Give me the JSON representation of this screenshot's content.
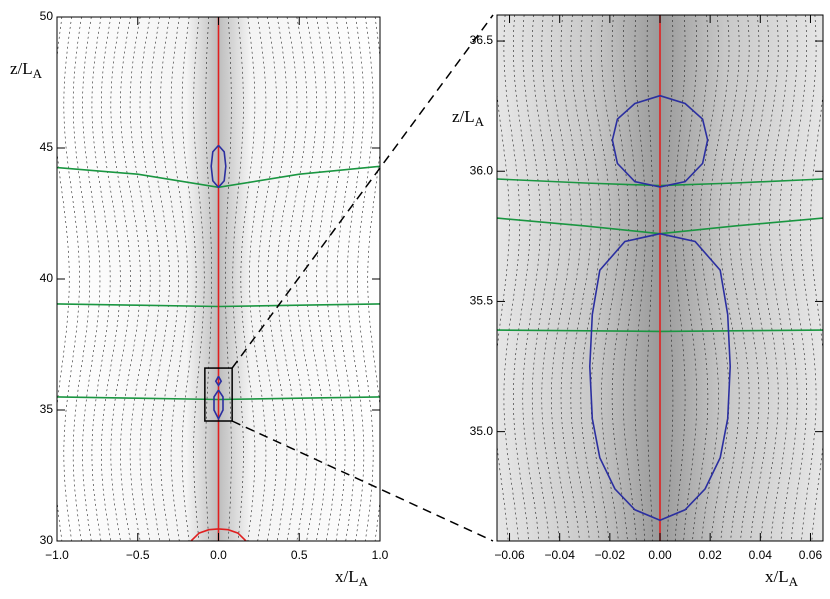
{
  "chart_data": [
    {
      "type": "line",
      "xlabel": {
        "main": "x/L",
        "sub": "A"
      },
      "ylabel": {
        "main": "z/L",
        "sub": "A"
      },
      "xlim": [
        -1,
        1
      ],
      "ylim": [
        30,
        50
      ],
      "xticks": [
        {
          "value": -1,
          "label": "−1.0"
        },
        {
          "value": -0.5,
          "label": "−0.5"
        },
        {
          "value": 0,
          "label": "0.0"
        },
        {
          "value": 0.5,
          "label": "0.5"
        },
        {
          "value": 1,
          "label": "1.0"
        }
      ],
      "yticks": [
        30,
        35,
        40,
        45,
        50
      ],
      "series": [
        {
          "color": "#1a9641",
          "x": [
            -1,
            -0.5,
            0,
            0.5,
            1
          ],
          "values": [
            44.25,
            44.0,
            43.5,
            44.0,
            44.3
          ]
        },
        {
          "color": "#1a9641",
          "x": [
            -1,
            -0.5,
            0,
            0.5,
            1
          ],
          "values": [
            39.05,
            39.0,
            38.95,
            39.0,
            39.05
          ]
        },
        {
          "color": "#1a9641",
          "x": [
            -1,
            -0.5,
            0,
            0.5,
            1
          ],
          "values": [
            35.5,
            35.45,
            35.4,
            35.45,
            35.5
          ]
        },
        {
          "color": "#e02020",
          "x": [
            0,
            0
          ],
          "values": [
            30,
            50
          ]
        },
        {
          "color": "#e02020",
          "x": [
            -0.17,
            -0.12,
            -0.06,
            0,
            0.06,
            0.12,
            0.17
          ],
          "values": [
            30,
            30.3,
            30.43,
            30.46,
            30.43,
            30.3,
            30
          ]
        },
        {
          "color": "#2b2fa0",
          "x": [
            0,
            0.035,
            0.045,
            0.035,
            0,
            -0.035,
            -0.045,
            -0.035,
            0
          ],
          "values": [
            45.1,
            44.85,
            44.3,
            43.75,
            43.5,
            43.75,
            44.3,
            44.85,
            45.1
          ]
        },
        {
          "color": "#2b2fa0",
          "x": [
            0,
            0.017,
            0,
            -0.017,
            0
          ],
          "values": [
            36.29,
            36.1,
            35.94,
            36.1,
            36.29
          ]
        },
        {
          "color": "#2b2fa0",
          "x": [
            0,
            0.028,
            0.028,
            0,
            -0.028,
            -0.028,
            0
          ],
          "values": [
            35.76,
            35.5,
            35.0,
            34.66,
            35.0,
            35.5,
            35.76
          ]
        }
      ]
    },
    {
      "type": "line",
      "xlabel": {
        "main": "x/L",
        "sub": "A"
      },
      "ylabel": {
        "main": "z/L",
        "sub": "A"
      },
      "xlim": [
        -0.065,
        0.065
      ],
      "ylim": [
        34.58,
        36.6
      ],
      "xticks": [
        {
          "value": -0.06,
          "label": "−0.06"
        },
        {
          "value": -0.04,
          "label": "−0.04"
        },
        {
          "value": -0.02,
          "label": "−0.02"
        },
        {
          "value": 0,
          "label": "0.00"
        },
        {
          "value": 0.02,
          "label": "0.02"
        },
        {
          "value": 0.04,
          "label": "0.04"
        },
        {
          "value": 0.06,
          "label": "0.06"
        }
      ],
      "yticks": [
        {
          "value": 35,
          "label": "35.0"
        },
        35.5,
        {
          "value": 36,
          "label": "36.0"
        },
        36.5
      ],
      "series": [
        {
          "color": "#1a9641",
          "x": [
            -0.065,
            -0.03,
            0,
            0.03,
            0.065
          ],
          "values": [
            35.97,
            35.955,
            35.945,
            35.955,
            35.97
          ]
        },
        {
          "color": "#1a9641",
          "x": [
            -0.065,
            -0.03,
            0,
            0.03,
            0.065
          ],
          "values": [
            35.82,
            35.79,
            35.76,
            35.79,
            35.82
          ]
        },
        {
          "color": "#1a9641",
          "x": [
            -0.065,
            0,
            0.065
          ],
          "values": [
            35.39,
            35.385,
            35.39
          ]
        },
        {
          "color": "#e02020",
          "x": [
            0,
            0
          ],
          "values": [
            34.58,
            36.6
          ]
        },
        {
          "color": "#2b2fa0",
          "x": [
            0,
            0.01,
            0.017,
            0.019,
            0.017,
            0.01,
            0,
            -0.01,
            -0.017,
            -0.019,
            -0.017,
            -0.01,
            0
          ],
          "values": [
            36.29,
            36.26,
            36.2,
            36.12,
            36.03,
            35.96,
            35.94,
            35.96,
            36.03,
            36.12,
            36.2,
            36.26,
            36.29
          ]
        },
        {
          "color": "#2b2fa0",
          "x": [
            0,
            0.014,
            0.024,
            0.027,
            0.028,
            0.027,
            0.024,
            0.018,
            0.01,
            0,
            -0.01,
            -0.018,
            -0.024,
            -0.027,
            -0.028,
            -0.027,
            -0.024,
            -0.014,
            0
          ],
          "values": [
            35.76,
            35.73,
            35.62,
            35.45,
            35.25,
            35.05,
            34.9,
            34.78,
            34.7,
            34.66,
            34.7,
            34.78,
            34.9,
            35.05,
            35.25,
            35.45,
            35.62,
            35.73,
            35.76
          ]
        }
      ]
    }
  ]
}
